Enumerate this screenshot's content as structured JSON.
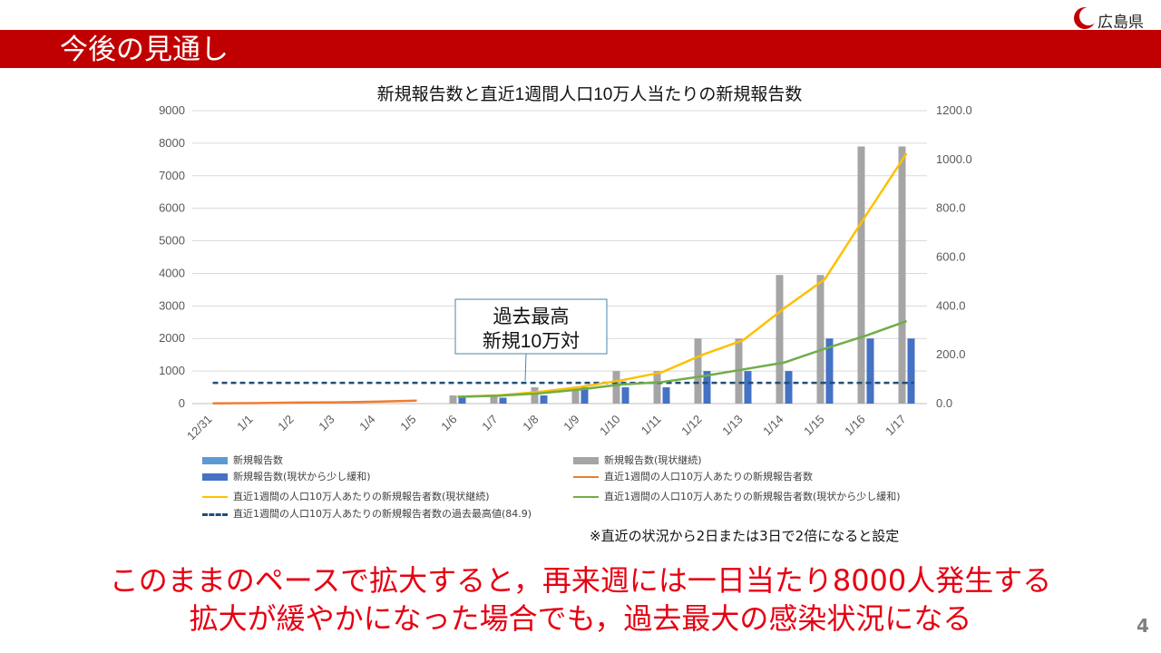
{
  "header": {
    "title": "今後の見通し",
    "logo_text": "広島県",
    "accent_color": "#c00000",
    "logo_icon": "hiroshima-prefecture-logo-icon"
  },
  "chart_data": {
    "type": "bar",
    "title": "新規報告数と直近1週間人口10万人当たりの新規報告数",
    "categories": [
      "12/31",
      "1/1",
      "1/2",
      "1/3",
      "1/4",
      "1/5",
      "1/6",
      "1/7",
      "1/8",
      "1/9",
      "1/10",
      "1/11",
      "1/12",
      "1/13",
      "1/14",
      "1/15",
      "1/16",
      "1/17"
    ],
    "ylim": [
      0,
      9000
    ],
    "y2lim": [
      0,
      1200
    ],
    "yticks": [
      "0",
      "1000",
      "2000",
      "3000",
      "4000",
      "5000",
      "6000",
      "7000",
      "8000",
      "9000"
    ],
    "y2ticks": [
      "0.0",
      "200.0",
      "400.0",
      "600.0",
      "800.0",
      "1000.0",
      "1200.0"
    ],
    "grid": true,
    "legend_position": "bottom",
    "series": [
      {
        "name": "新規報告数",
        "kind": "bar",
        "axis": "left",
        "color": "#5b9bd5",
        "values": [
          null,
          null,
          null,
          null,
          null,
          null,
          null,
          null,
          null,
          null,
          null,
          null,
          null,
          null,
          null,
          null,
          null,
          null
        ]
      },
      {
        "name": "新規報告数(現状継続)",
        "kind": "bar",
        "axis": "left",
        "color": "#a5a5a5",
        "values": [
          null,
          null,
          null,
          null,
          null,
          null,
          250,
          250,
          500,
          500,
          1000,
          1000,
          2000,
          2000,
          3950,
          3950,
          7900,
          7900
        ]
      },
      {
        "name": "新規報告数(現状から少し緩和)",
        "kind": "bar",
        "axis": "left",
        "color": "#4472c4",
        "values": [
          null,
          null,
          null,
          null,
          null,
          null,
          180,
          180,
          250,
          500,
          500,
          500,
          1000,
          1000,
          1000,
          2000,
          2000,
          2000
        ]
      },
      {
        "name": "直近1週間の人口10万人あたりの新規報告者数",
        "kind": "line",
        "axis": "right",
        "color": "#ed7d31",
        "values": [
          1,
          2,
          4,
          5,
          8,
          12,
          null,
          null,
          null,
          null,
          null,
          null,
          null,
          null,
          null,
          null,
          null,
          null
        ]
      },
      {
        "name": "直近1週間の人口10万人あたりの新規報告者数(現状継続)",
        "kind": "line",
        "axis": "right",
        "color": "#ffc000",
        "values": [
          null,
          null,
          null,
          null,
          null,
          null,
          28,
          34,
          48,
          68,
          95,
          128,
          200,
          260,
          390,
          510,
          770,
          1025
        ]
      },
      {
        "name": "直近1週間の人口10万人あたりの新規報告者数(現状から少し緩和)",
        "kind": "line",
        "axis": "right",
        "color": "#70ad47",
        "values": [
          null,
          null,
          null,
          null,
          null,
          null,
          28,
          32,
          42,
          58,
          78,
          88,
          112,
          140,
          168,
          225,
          278,
          338
        ]
      },
      {
        "name": "直近1週間の人口10万人あたりの新規報告者数の過去最高値(84.9)",
        "kind": "hline",
        "axis": "right",
        "color": "#1f4e79",
        "value": 84.9
      }
    ],
    "callout": {
      "line1": "過去最高",
      "line2": "新規10万対"
    }
  },
  "note": "※直近の状況から2日または3日で2倍になると設定",
  "messages": {
    "line1": "このままのペースで拡大すると，再来週には一日当たり8000人発生する",
    "line2": "拡大が緩やかになった場合でも，過去最大の感染状況になる",
    "color": "#e60012"
  },
  "page_number": "4"
}
